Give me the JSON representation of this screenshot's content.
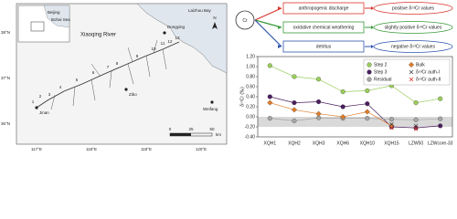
{
  "map": {
    "inset": [
      "Beijing",
      "Bohai Sea"
    ],
    "river": "Xiaoqing River",
    "bay": "Laizhou Bay",
    "cities": [
      "Dongying",
      "Jinan",
      "Zibo",
      "Weifang"
    ],
    "lat_labels": [
      "38°N",
      "37°N",
      "36°N"
    ],
    "lon_labels": [
      "117°E",
      "118°E",
      "119°E",
      "120°E"
    ],
    "sites": [
      "1",
      "2",
      "3",
      "4",
      "5",
      "6",
      "7",
      "8",
      "9",
      "10",
      "11",
      "12",
      "13"
    ],
    "scale": [
      "0",
      "25",
      "50",
      "km"
    ],
    "north": "N"
  },
  "diagram": {
    "center": "Cr",
    "sources": [
      "anthropogenic discharge",
      "oxidative chemical weathering",
      "detritus"
    ],
    "results": [
      "positive δ⁵³Cr values",
      "slightly positive δ⁵³Cr values",
      "negative δ⁵³Cr values"
    ],
    "colors": [
      "#d9342b",
      "#3a9a3a",
      "#2f56b0"
    ]
  },
  "chart_data": {
    "type": "line",
    "y_label": "δ⁵³Cr (‰)",
    "categories": [
      "XQH1",
      "XQH2",
      "XQH3",
      "XQH6",
      "XQH10",
      "XQH15",
      "LZW50",
      "LZWcore-33"
    ],
    "ylim": [
      -0.4,
      1.2
    ],
    "yticks": [
      {
        "value": -0.4,
        "label": "-0.40"
      },
      {
        "value": -0.2,
        "label": "-0.20"
      },
      {
        "value": 0,
        "label": "0.00"
      },
      {
        "value": 0.2,
        "label": "0.20"
      },
      {
        "value": 0.4,
        "label": "0.40"
      },
      {
        "value": 0.6,
        "label": "0.60"
      },
      {
        "value": 0.8,
        "label": "0.80"
      },
      {
        "value": 1.0,
        "label": "1.00"
      },
      {
        "value": 1.2,
        "label": "1.20"
      }
    ],
    "band": [
      -0.2,
      0
    ],
    "band_color": "#d9d9d9",
    "series": [
      {
        "name": "Step 2",
        "color": "#9acd5a",
        "marker": "circle",
        "values": [
          1.02,
          0.8,
          0.75,
          0.5,
          0.52,
          0.62,
          0.28,
          0.36
        ]
      },
      {
        "name": "Step 3",
        "color": "#4b1f5e",
        "marker": "circle",
        "values": [
          0.4,
          0.28,
          0.3,
          0.2,
          0.26,
          -0.2,
          -0.22,
          -0.18
        ]
      },
      {
        "name": "Residual",
        "color": "#a6a6a6",
        "marker": "circle",
        "values": [
          -0.03,
          -0.08,
          -0.02,
          -0.03,
          -0.03,
          -0.05,
          -0.06,
          -0.04
        ]
      },
      {
        "name": "Bulk",
        "color": "#e07b28",
        "marker": "diamond",
        "values": [
          0.28,
          0.14,
          0.06,
          0.0,
          0.1,
          -0.18,
          null,
          null
        ]
      },
      {
        "name": "δ⁵³Cr auth-I",
        "color": "#444444",
        "marker": "x",
        "values": [
          null,
          null,
          null,
          null,
          null,
          -0.15,
          -0.18,
          null
        ]
      },
      {
        "name": "δ⁵³Cr auth-II",
        "color": "#d9342b",
        "marker": "x",
        "values": [
          null,
          null,
          null,
          null,
          null,
          -0.22,
          -0.24,
          null
        ]
      }
    ]
  }
}
